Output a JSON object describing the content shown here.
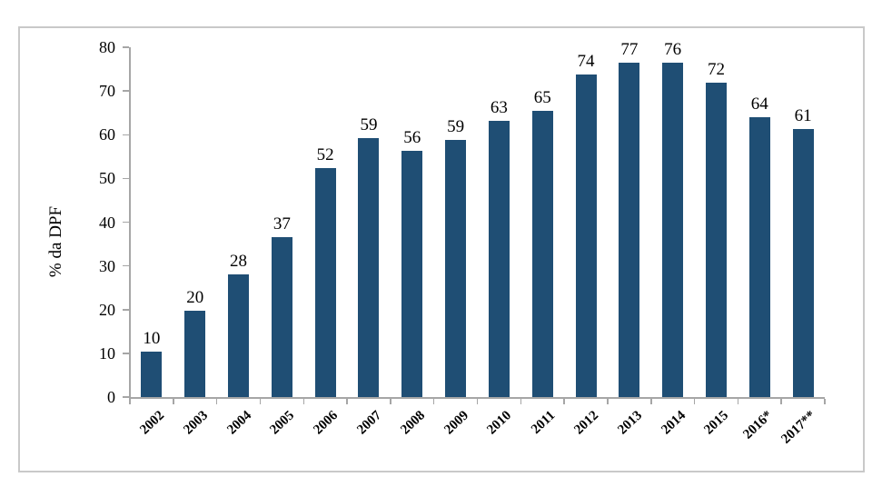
{
  "chart_data": {
    "type": "bar",
    "title": "",
    "xlabel": "",
    "ylabel": "% da DPF",
    "categories": [
      "2002",
      "2003",
      "2004",
      "2005",
      "2006",
      "2007",
      "2008",
      "2009",
      "2010",
      "2011",
      "2012",
      "2013",
      "2014",
      "2015",
      "2016*",
      "2017**"
    ],
    "values": [
      10,
      20,
      28,
      37,
      52,
      59,
      56,
      59,
      63,
      65,
      74,
      77,
      76,
      72,
      64,
      61
    ],
    "bar_heights": [
      10.3,
      19.8,
      28.0,
      36.6,
      52.4,
      59.3,
      56.4,
      58.9,
      63.2,
      65.4,
      73.8,
      76.5,
      76.4,
      71.9,
      64.1,
      61.3
    ],
    "ylim": [
      0,
      80
    ],
    "yticks": [
      0,
      10,
      20,
      30,
      40,
      50,
      60,
      70,
      80
    ],
    "grid": false,
    "legend_position": "none",
    "bar_color": "#1F4E74",
    "axis_color": "#A6A6A6",
    "frame_border_color": "#C9C9C9"
  }
}
